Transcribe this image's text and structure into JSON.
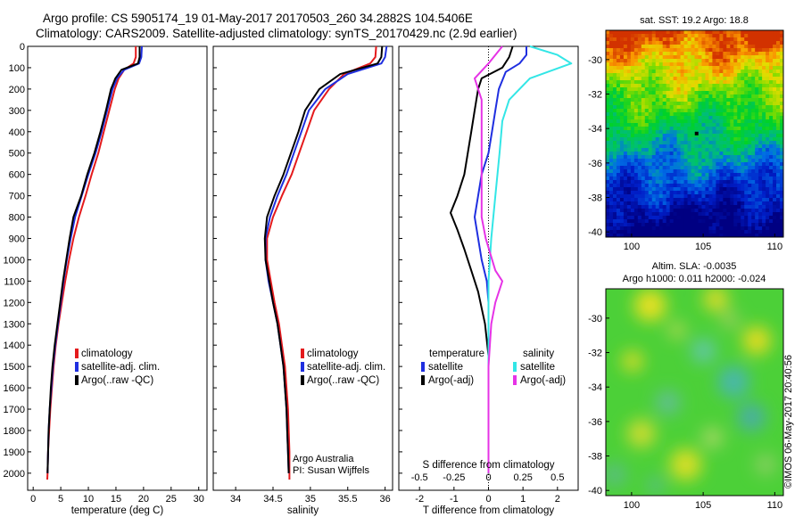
{
  "header": {
    "title_line1": "Argo profile: CS 5905174_19 01-May-2017 20170503_260 34.2882S 104.5406E",
    "title_line2": "Climatology: CARS2009. Satellite-adjusted climatology: synTS_20170429.nc (2.9d earlier)"
  },
  "stamp": "©IMOS 06-May-2017 20:40:56",
  "depth_ticks": [
    "0",
    "100",
    "200",
    "300",
    "400",
    "500",
    "600",
    "700",
    "800",
    "900",
    "1000",
    "1100",
    "1200",
    "1300",
    "1400",
    "1500",
    "1600",
    "1700",
    "1800",
    "1900",
    "2000"
  ],
  "colors": {
    "climatology": "#e41a1c",
    "satellite": "#1f2fe0",
    "argo": "#000000",
    "salinity_sat": "#33e6e6",
    "salinity_argo": "#e633e6"
  },
  "chart_data": [
    {
      "type": "line",
      "id": "temperature",
      "xlabel": "temperature (deg C)",
      "xlim": [
        -1,
        31.5
      ],
      "xticks": [
        "0",
        "5",
        "10",
        "15",
        "20",
        "25",
        "30"
      ],
      "ylim": [
        2080,
        0
      ],
      "y_reversed": true,
      "legend": [
        "climatology",
        "satellite-adj. clim.",
        "Argo(..raw -QC)"
      ],
      "series": [
        {
          "name": "climatology",
          "points": [
            [
              18.6,
              0
            ],
            [
              18.6,
              50
            ],
            [
              18.2,
              80
            ],
            [
              16.5,
              110
            ],
            [
              15.5,
              150
            ],
            [
              14.8,
              200
            ],
            [
              13.8,
              300
            ],
            [
              12.8,
              400
            ],
            [
              11.8,
              500
            ],
            [
              10.6,
              600
            ],
            [
              9.5,
              700
            ],
            [
              8.3,
              800
            ],
            [
              7.3,
              900
            ],
            [
              6.5,
              1000
            ],
            [
              5.8,
              1100
            ],
            [
              5.2,
              1200
            ],
            [
              4.6,
              1300
            ],
            [
              4.1,
              1400
            ],
            [
              3.7,
              1500
            ],
            [
              3.4,
              1600
            ],
            [
              3.1,
              1700
            ],
            [
              2.9,
              1800
            ],
            [
              2.7,
              1900
            ],
            [
              2.6,
              2000
            ],
            [
              2.55,
              2030
            ]
          ]
        },
        {
          "name": "satellite-adj. clim.",
          "points": [
            [
              19.7,
              0
            ],
            [
              19.6,
              50
            ],
            [
              19.2,
              80
            ],
            [
              16.5,
              110
            ],
            [
              15.2,
              150
            ],
            [
              14.4,
              200
            ],
            [
              13.4,
              300
            ],
            [
              12.4,
              400
            ],
            [
              11.3,
              500
            ],
            [
              10.0,
              600
            ],
            [
              8.8,
              700
            ],
            [
              7.6,
              800
            ],
            [
              6.8,
              900
            ],
            [
              6.1,
              1000
            ],
            [
              5.5,
              1100
            ],
            [
              5.0,
              1200
            ],
            [
              4.5,
              1300
            ],
            [
              4.0,
              1400
            ],
            [
              3.6,
              1500
            ],
            [
              3.3,
              1600
            ],
            [
              3.0,
              1700
            ],
            [
              2.8,
              1800
            ],
            [
              2.7,
              1900
            ],
            [
              2.6,
              2000
            ]
          ]
        },
        {
          "name": "Argo(..raw -QC)",
          "points": [
            [
              19.3,
              0
            ],
            [
              19.3,
              50
            ],
            [
              19.0,
              80
            ],
            [
              16.0,
              110
            ],
            [
              14.9,
              150
            ],
            [
              14.1,
              200
            ],
            [
              13.2,
              300
            ],
            [
              12.2,
              400
            ],
            [
              11.1,
              500
            ],
            [
              9.8,
              600
            ],
            [
              8.7,
              700
            ],
            [
              7.3,
              800
            ],
            [
              6.6,
              900
            ],
            [
              6.0,
              1000
            ],
            [
              5.4,
              1100
            ],
            [
              4.9,
              1200
            ],
            [
              4.4,
              1300
            ],
            [
              3.9,
              1400
            ],
            [
              3.5,
              1500
            ],
            [
              3.2,
              1600
            ],
            [
              3.0,
              1700
            ],
            [
              2.8,
              1800
            ],
            [
              2.7,
              1900
            ],
            [
              2.6,
              2000
            ]
          ]
        }
      ]
    },
    {
      "type": "line",
      "id": "salinity",
      "xlabel": "salinity",
      "xlim": [
        33.7,
        36.1
      ],
      "xticks": [
        "34",
        "34.5",
        "35",
        "35.5",
        "36"
      ],
      "ylim": [
        2080,
        0
      ],
      "y_reversed": true,
      "legend": [
        "climatology",
        "satellite-adj. clim.",
        "Argo(..raw -QC)"
      ],
      "annotation": [
        "Argo Australia",
        "PI: Susan Wijffels"
      ],
      "series": [
        {
          "name": "climatology",
          "points": [
            [
              35.88,
              0
            ],
            [
              35.87,
              50
            ],
            [
              35.8,
              80
            ],
            [
              35.45,
              130
            ],
            [
              35.25,
              200
            ],
            [
              35.05,
              300
            ],
            [
              34.95,
              400
            ],
            [
              34.85,
              500
            ],
            [
              34.75,
              600
            ],
            [
              34.62,
              700
            ],
            [
              34.5,
              800
            ],
            [
              34.42,
              900
            ],
            [
              34.42,
              1000
            ],
            [
              34.47,
              1100
            ],
            [
              34.52,
              1200
            ],
            [
              34.58,
              1300
            ],
            [
              34.62,
              1400
            ],
            [
              34.66,
              1500
            ],
            [
              34.68,
              1600
            ],
            [
              34.7,
              1700
            ],
            [
              34.71,
              1800
            ],
            [
              34.72,
              1900
            ],
            [
              34.72,
              2000
            ],
            [
              34.72,
              2030
            ]
          ]
        },
        {
          "name": "satellite-adj. clim.",
          "points": [
            [
              36.02,
              0
            ],
            [
              36.0,
              50
            ],
            [
              35.95,
              80
            ],
            [
              35.5,
              130
            ],
            [
              35.2,
              200
            ],
            [
              34.98,
              300
            ],
            [
              34.88,
              400
            ],
            [
              34.78,
              500
            ],
            [
              34.68,
              600
            ],
            [
              34.56,
              700
            ],
            [
              34.46,
              800
            ],
            [
              34.4,
              900
            ],
            [
              34.4,
              1000
            ],
            [
              34.44,
              1100
            ],
            [
              34.5,
              1200
            ],
            [
              34.56,
              1300
            ],
            [
              34.6,
              1400
            ],
            [
              34.64,
              1500
            ],
            [
              34.66,
              1600
            ],
            [
              34.68,
              1700
            ],
            [
              34.69,
              1800
            ],
            [
              34.7,
              1900
            ],
            [
              34.71,
              2000
            ]
          ]
        },
        {
          "name": "Argo(..raw -QC)",
          "points": [
            [
              35.96,
              0
            ],
            [
              35.95,
              50
            ],
            [
              35.9,
              80
            ],
            [
              35.4,
              130
            ],
            [
              35.12,
              200
            ],
            [
              34.93,
              300
            ],
            [
              34.84,
              400
            ],
            [
              34.74,
              500
            ],
            [
              34.64,
              600
            ],
            [
              34.52,
              700
            ],
            [
              34.42,
              800
            ],
            [
              34.39,
              900
            ],
            [
              34.4,
              1000
            ],
            [
              34.45,
              1100
            ],
            [
              34.5,
              1200
            ],
            [
              34.56,
              1300
            ],
            [
              34.6,
              1400
            ],
            [
              34.64,
              1500
            ],
            [
              34.66,
              1600
            ],
            [
              34.68,
              1700
            ],
            [
              34.69,
              1800
            ],
            [
              34.7,
              1900
            ],
            [
              34.71,
              2000
            ]
          ]
        }
      ]
    },
    {
      "type": "line",
      "id": "difference",
      "xlabel": "T difference from climatology",
      "xlabel_top": "S difference from climatology",
      "xlim": [
        -2.6,
        2.6
      ],
      "xticks": [
        "-2",
        "-1",
        "0",
        "1",
        "2"
      ],
      "xticks_top": [
        "-0.5",
        "-0.25",
        "0",
        "0.25",
        "0.5"
      ],
      "ylim": [
        2080,
        0
      ],
      "y_reversed": true,
      "legend_titles": [
        "temperature",
        "salinity"
      ],
      "legend": [
        "satellite",
        "Argo(-adj)",
        "satellite",
        "Argo(-adj)"
      ],
      "series": [
        {
          "name": "temperature satellite",
          "points": [
            [
              1.1,
              0
            ],
            [
              1.1,
              40
            ],
            [
              0.9,
              80
            ],
            [
              0.5,
              120
            ],
            [
              0.3,
              200
            ],
            [
              0.2,
              300
            ],
            [
              0.1,
              400
            ],
            [
              0.0,
              500
            ],
            [
              -0.2,
              600
            ],
            [
              -0.3,
              700
            ],
            [
              -0.4,
              800
            ],
            [
              -0.3,
              900
            ],
            [
              -0.2,
              1000
            ],
            [
              -0.05,
              1100
            ],
            [
              0.0,
              1200
            ],
            [
              0.0,
              1300
            ],
            [
              0.0,
              1500
            ],
            [
              0.0,
              2000
            ]
          ]
        },
        {
          "name": "temperature Argo(-adj)",
          "points": [
            [
              0.7,
              0
            ],
            [
              0.6,
              50
            ],
            [
              0.4,
              100
            ],
            [
              -0.2,
              150
            ],
            [
              -0.3,
              200
            ],
            [
              -0.4,
              300
            ],
            [
              -0.5,
              400
            ],
            [
              -0.6,
              500
            ],
            [
              -0.7,
              600
            ],
            [
              -0.9,
              700
            ],
            [
              -1.1,
              780
            ],
            [
              -0.9,
              860
            ],
            [
              -0.7,
              950
            ],
            [
              -0.5,
              1050
            ],
            [
              -0.3,
              1150
            ],
            [
              -0.1,
              1300
            ],
            [
              0.0,
              1450
            ],
            [
              0.0,
              2000
            ]
          ]
        },
        {
          "name": "salinity satellite",
          "points": [
            [
              0.3,
              0
            ],
            [
              0.5,
              40
            ],
            [
              0.6,
              80
            ],
            [
              0.3,
              150
            ],
            [
              0.15,
              250
            ],
            [
              0.1,
              350
            ],
            [
              0.08,
              500
            ],
            [
              0.05,
              700
            ],
            [
              0.02,
              900
            ],
            [
              0.0,
              1100
            ],
            [
              0.0,
              1500
            ],
            [
              0.0,
              2000
            ]
          ]
        },
        {
          "name": "salinity Argo(-adj)",
          "points": [
            [
              0.1,
              0
            ],
            [
              0.0,
              80
            ],
            [
              -0.1,
              150
            ],
            [
              -0.05,
              250
            ],
            [
              -0.05,
              400
            ],
            [
              -0.05,
              600
            ],
            [
              -0.05,
              800
            ],
            [
              -0.02,
              900
            ],
            [
              0.05,
              1050
            ],
            [
              0.1,
              1100
            ],
            [
              0.05,
              1200
            ],
            [
              0.02,
              1300
            ],
            [
              0.0,
              1500
            ],
            [
              0.0,
              2000
            ]
          ]
        }
      ]
    },
    {
      "type": "heatmap",
      "id": "sst_map",
      "title": "sat. SST: 19.2 Argo: 18.8",
      "xlim": [
        98.2,
        110.6
      ],
      "xticks": [
        "100",
        "105",
        "110"
      ],
      "ylim": [
        -40.3,
        -28.3
      ],
      "yticks": [
        "-30",
        "-32",
        "-34",
        "-36",
        "-38",
        "-40"
      ],
      "marker": [
        104.5406,
        -34.2882
      ]
    },
    {
      "type": "heatmap",
      "id": "sla_map",
      "title": "Altim. SLA: -0.0035",
      "subtitle": "Argo h1000: 0.011 h2000: -0.024",
      "xlim": [
        98.2,
        110.6
      ],
      "xticks": [
        "100",
        "105",
        "110"
      ],
      "ylim": [
        -40.3,
        -28.3
      ],
      "yticks": [
        "-30",
        "-32",
        "-34",
        "-36",
        "-38",
        "-40"
      ],
      "marker": [
        104.5406,
        -34.2882
      ]
    }
  ]
}
